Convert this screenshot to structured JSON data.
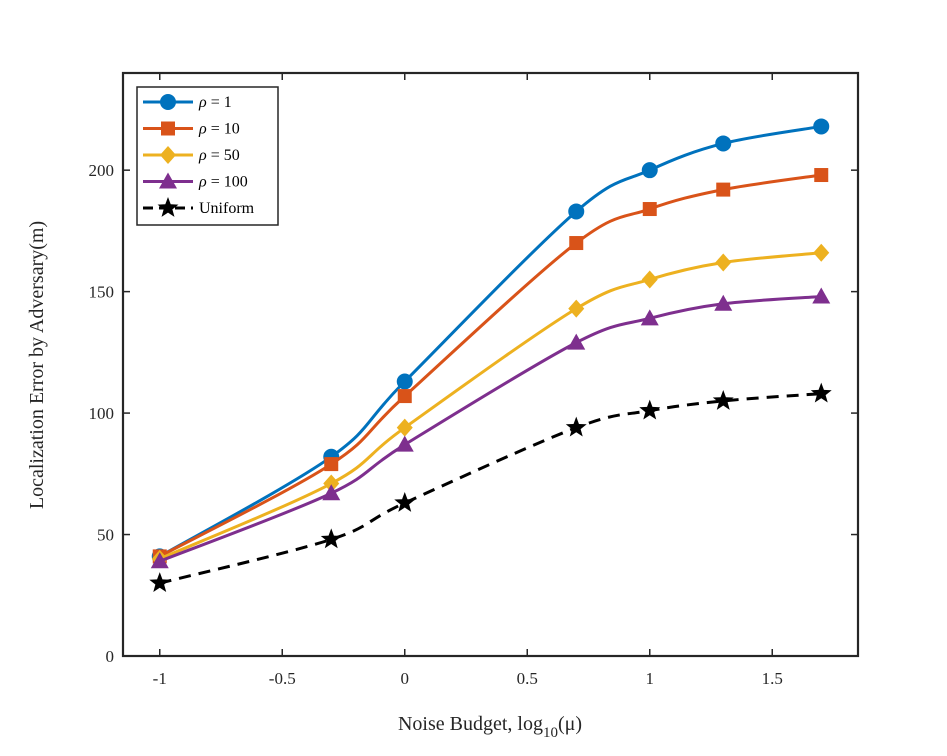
{
  "chart_data": {
    "type": "line",
    "title": "",
    "xlabel": "Noise Budget, log",
    "xlabel_sub": "10",
    "xlabel_arg": "(μ)",
    "ylabel": "Localization Error by Adversary(m)",
    "xlim": [
      -1.15,
      1.85
    ],
    "ylim": [
      0,
      240
    ],
    "xticks": [
      -1,
      -0.5,
      0,
      0.5,
      1,
      1.5
    ],
    "xtick_labels": [
      "-1",
      "-0.5",
      "0",
      "0.5",
      "1",
      "1.5"
    ],
    "yticks": [
      0,
      50,
      100,
      150,
      200
    ],
    "ytick_labels": [
      "0",
      "50",
      "100",
      "150",
      "200"
    ],
    "grid": false,
    "legend_position": "top-left",
    "x": [
      -1,
      -0.3,
      0,
      0.7,
      1,
      1.3,
      1.7
    ],
    "series": [
      {
        "name": "ρ = 1",
        "symbol": "ρ",
        "suffix": " = 1",
        "color": "#0072BD",
        "marker": "circle",
        "dash": "solid",
        "values": [
          41,
          82,
          113,
          183,
          200,
          211,
          218
        ]
      },
      {
        "name": "ρ = 10",
        "symbol": "ρ",
        "suffix": " = 10",
        "color": "#D95319",
        "marker": "square",
        "dash": "solid",
        "values": [
          41,
          79,
          107,
          170,
          184,
          192,
          198
        ]
      },
      {
        "name": "ρ = 50",
        "symbol": "ρ",
        "suffix": " = 50",
        "color": "#EDB120",
        "marker": "diamond",
        "dash": "solid",
        "values": [
          40,
          71,
          94,
          143,
          155,
          162,
          166
        ]
      },
      {
        "name": "ρ = 100",
        "symbol": "ρ",
        "suffix": " = 100",
        "color": "#7E2F8E",
        "marker": "triangle",
        "dash": "solid",
        "values": [
          39,
          67,
          87,
          129,
          139,
          145,
          148
        ]
      },
      {
        "name": "Uniform",
        "symbol": "",
        "suffix": "Uniform",
        "color": "#000000",
        "marker": "star",
        "dash": "dashed",
        "values": [
          30,
          48,
          63,
          94,
          101,
          105,
          108
        ]
      }
    ]
  }
}
